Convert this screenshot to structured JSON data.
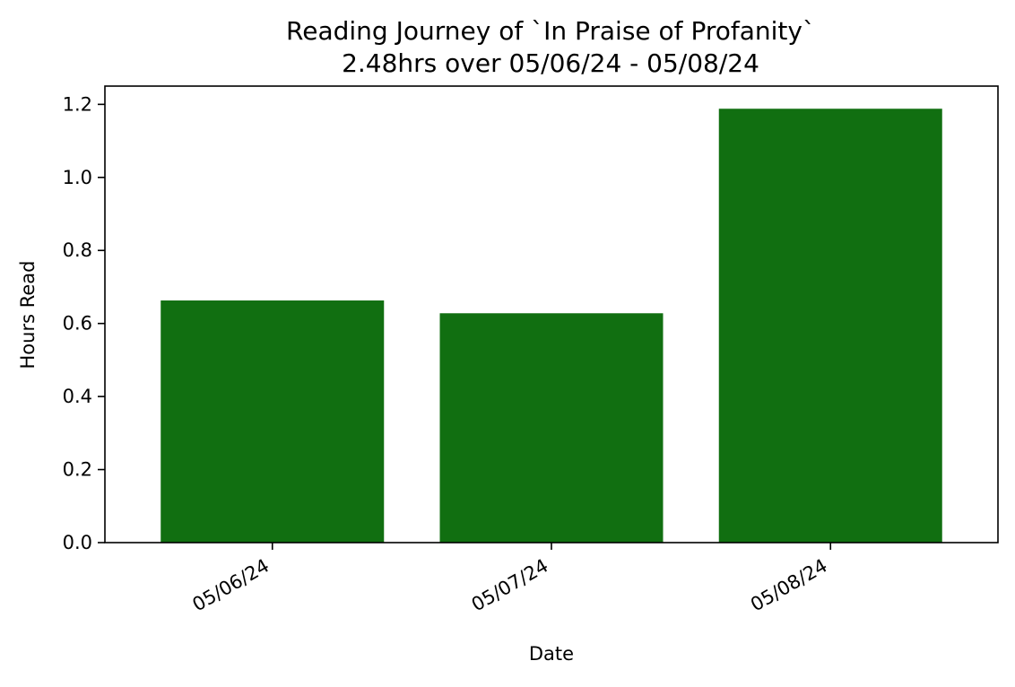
{
  "chart_data": {
    "type": "bar",
    "title": "Reading Journey of `In Praise of Profanity`",
    "subtitle": "2.48hrs over 05/06/24 - 05/08/24",
    "xlabel": "Date",
    "ylabel": "Hours Read",
    "categories": [
      "05/06/24",
      "05/07/24",
      "05/08/24"
    ],
    "values": [
      0.663,
      0.628,
      1.188
    ],
    "ylim": [
      0,
      1.25
    ],
    "yticks": [
      0.0,
      0.2,
      0.4,
      0.6,
      0.8,
      1.0,
      1.2
    ],
    "ytick_labels": [
      "0.0",
      "0.2",
      "0.4",
      "0.6",
      "0.8",
      "1.0",
      "1.2"
    ],
    "bar_color": "#116f11",
    "grid": false,
    "legend": "none"
  }
}
